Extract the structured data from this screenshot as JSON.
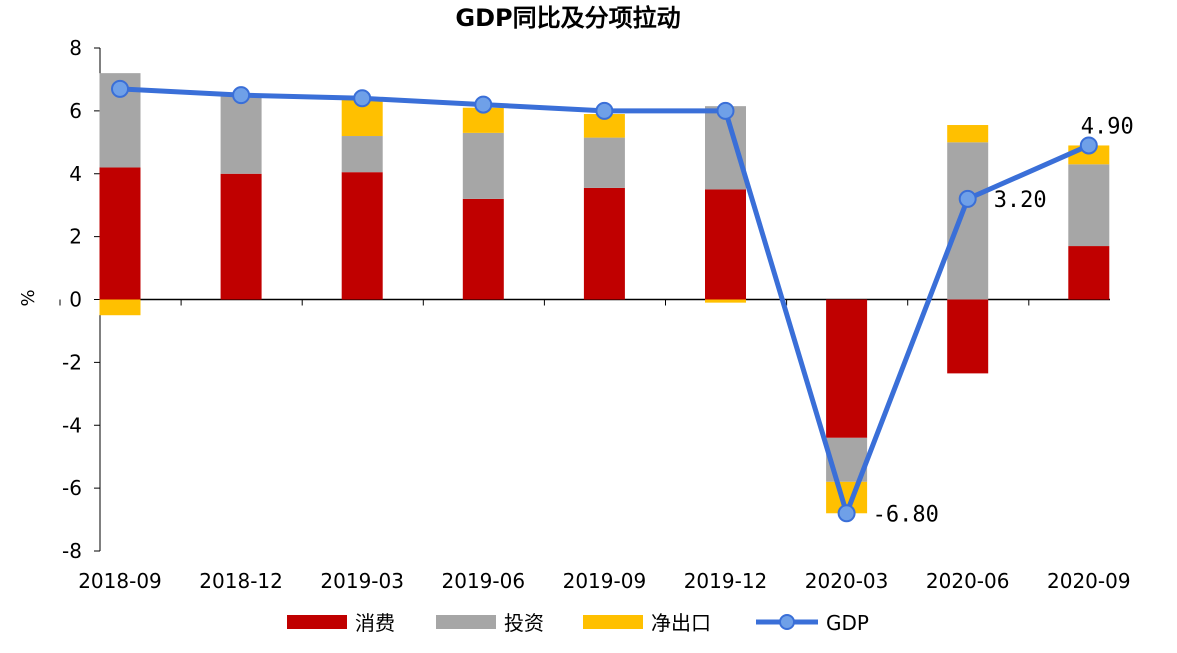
{
  "chart_data": {
    "type": "bar",
    "stacked": true,
    "title": "GDP同比及分项拉动",
    "xlabel": "",
    "ylabel": "%",
    "ylim": [
      -8,
      8
    ],
    "yticks": [
      8,
      6,
      4,
      2,
      0,
      -2,
      -4,
      -6,
      -8
    ],
    "ytick_labels": [
      "8",
      "6",
      "4",
      "2",
      "0",
      "-2",
      "-4",
      "-6",
      "-8"
    ],
    "categories": [
      "2018-09",
      "2018-12",
      "2019-03",
      "2019-06",
      "2019-09",
      "2019-12",
      "2020-03",
      "2020-06",
      "2020-09"
    ],
    "series": [
      {
        "name": "消费",
        "kind": "bar",
        "color": "#C00000",
        "values": [
          4.2,
          4.0,
          4.05,
          3.2,
          3.55,
          3.5,
          -4.4,
          -2.35,
          1.7
        ]
      },
      {
        "name": "投资",
        "kind": "bar",
        "color": "#A6A6A6",
        "values": [
          3.0,
          2.5,
          1.15,
          2.1,
          1.6,
          2.65,
          -1.4,
          5.0,
          2.6
        ]
      },
      {
        "name": "净出口",
        "kind": "bar",
        "color": "#FFC000",
        "values": [
          -0.5,
          0.0,
          1.15,
          0.8,
          0.75,
          -0.1,
          -1.0,
          0.55,
          0.6
        ]
      },
      {
        "name": "GDP",
        "kind": "line",
        "color": "#3A6FD8",
        "values": [
          6.7,
          6.5,
          6.4,
          6.2,
          6.0,
          6.0,
          -6.8,
          3.2,
          4.9
        ]
      }
    ],
    "data_labels": [
      {
        "category": "2020-03",
        "text": "-6.80"
      },
      {
        "category": "2020-06",
        "text": "3.20"
      },
      {
        "category": "2020-09",
        "text": "4.90"
      }
    ],
    "legend": {
      "placement": "bottom"
    },
    "grid": false
  }
}
